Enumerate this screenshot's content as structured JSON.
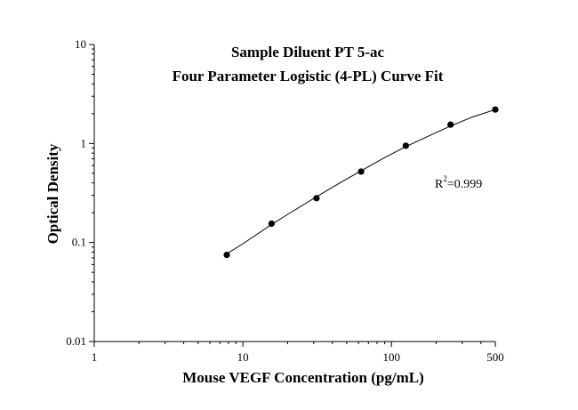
{
  "chart_data": {
    "type": "scatter",
    "title": "Sample Diluent PT 5-ac",
    "subtitle": "Four Parameter Logistic (4-PL) Curve Fit",
    "xlabel": "Mouse VEGF Concentration (pg/mL)",
    "ylabel": "Optical Density",
    "x_scale": "log",
    "y_scale": "log",
    "xlim": [
      1,
      500
    ],
    "ylim": [
      0.01,
      10
    ],
    "x_tick_labels": [
      "1",
      "10",
      "100",
      "500"
    ],
    "y_tick_labels": [
      "0.01",
      "0.1",
      "1",
      "10"
    ],
    "grid": false,
    "annotation": {
      "base": "R",
      "sup": "2",
      "rest": "=0.999"
    },
    "series": [
      {
        "kind": "points",
        "x": [
          7.8,
          15.6,
          31.3,
          62.5,
          125,
          250,
          500
        ],
        "y": [
          0.075,
          0.155,
          0.28,
          0.52,
          0.95,
          1.55,
          2.2
        ]
      },
      {
        "kind": "fit-curve",
        "model": "4-PL",
        "x": [
          7.8,
          10,
          15.6,
          20,
          31.3,
          45,
          62.5,
          90,
          125,
          180,
          250,
          350,
          500
        ],
        "y": [
          0.077,
          0.097,
          0.152,
          0.192,
          0.29,
          0.4,
          0.53,
          0.72,
          0.93,
          1.2,
          1.5,
          1.85,
          2.2
        ]
      }
    ]
  }
}
